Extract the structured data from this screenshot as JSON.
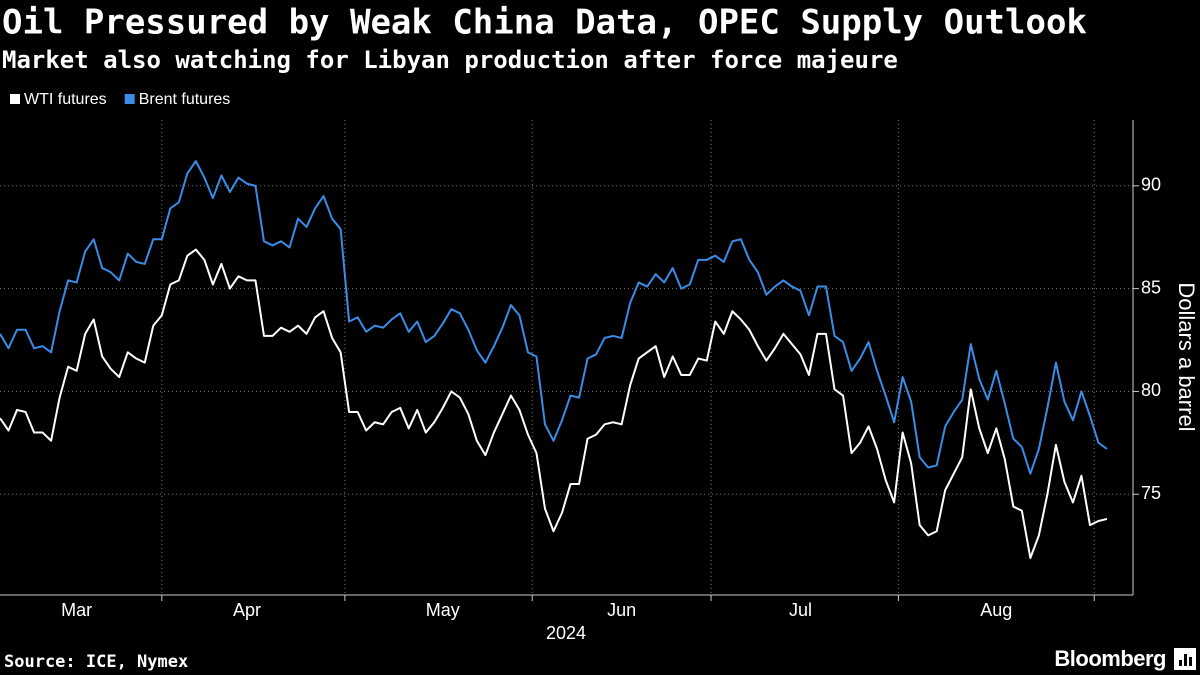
{
  "chart_data": {
    "type": "line",
    "title": "Oil Pressured by Weak China Data, OPEC Supply Outlook",
    "subtitle": "Market also watching for Libyan production after force majeure",
    "xlabel": "2024",
    "ylabel": "Dollars a barrel",
    "source": "Source: ICE, Nymex",
    "brand": "Bloomberg",
    "categories": [
      null,
      null,
      null,
      null,
      null,
      null,
      null,
      null,
      null,
      "Mar",
      null,
      null,
      null,
      null,
      null,
      null,
      null,
      null,
      null,
      null,
      null,
      null,
      null,
      null,
      null,
      null,
      null,
      null,
      null,
      "Apr",
      null,
      null,
      null,
      null,
      null,
      null,
      null,
      null,
      null,
      null,
      null,
      null,
      null,
      null,
      null,
      null,
      null,
      null,
      null,
      null,
      null,
      null,
      "May",
      null,
      null,
      null,
      null,
      null,
      null,
      null,
      null,
      null,
      null,
      null,
      null,
      null,
      null,
      null,
      null,
      null,
      null,
      null,
      null,
      "Jun",
      null,
      null,
      null,
      null,
      null,
      null,
      null,
      null,
      null,
      null,
      null,
      null,
      null,
      null,
      null,
      null,
      null,
      null,
      null,
      null,
      "Jul",
      null,
      null,
      null,
      null,
      null,
      null,
      null,
      null,
      null,
      null,
      null,
      null,
      null,
      null,
      null,
      null,
      null,
      null,
      null,
      null,
      null,
      null,
      "Aug",
      null,
      null,
      null,
      null,
      null,
      null,
      null,
      null,
      null,
      null,
      null,
      null,
      null
    ],
    "series": [
      {
        "name": "WTI futures",
        "color": "#ffffff",
        "values": [
          78.7,
          78.1,
          79.1,
          79.0,
          78.0,
          78.0,
          77.6,
          79.7,
          81.2,
          81.0,
          82.8,
          83.5,
          81.7,
          81.1,
          80.7,
          81.9,
          81.6,
          81.4,
          83.2,
          83.7,
          85.2,
          85.4,
          86.6,
          86.9,
          86.4,
          85.2,
          86.2,
          85.0,
          85.6,
          85.4,
          85.4,
          82.7,
          82.7,
          83.1,
          82.9,
          83.2,
          82.8,
          83.6,
          83.9,
          82.6,
          81.9,
          79.0,
          79.0,
          78.1,
          78.5,
          78.4,
          79.0,
          79.2,
          78.2,
          79.1,
          78.0,
          78.5,
          79.2,
          80.0,
          79.7,
          78.9,
          77.6,
          76.9,
          78.0,
          78.9,
          79.8,
          79.1,
          77.9,
          77.0,
          74.3,
          73.2,
          74.1,
          75.5,
          75.5,
          77.7,
          77.9,
          78.4,
          78.5,
          78.4,
          80.3,
          81.6,
          81.9,
          82.2,
          80.7,
          81.7,
          80.8,
          80.8,
          81.6,
          81.5,
          83.4,
          82.8,
          83.9,
          83.5,
          83.0,
          82.2,
          81.5,
          82.1,
          82.8,
          82.3,
          81.8,
          80.8,
          82.8,
          82.8,
          80.1,
          79.8,
          77.0,
          77.5,
          78.3,
          77.2,
          75.7,
          74.6,
          78.0,
          76.5,
          73.5,
          73.0,
          73.2,
          75.2,
          76.0,
          76.8,
          80.1,
          78.2,
          77.0,
          78.2,
          76.7,
          74.4,
          74.2,
          71.9,
          73.0,
          75.0,
          77.4,
          75.6,
          74.6,
          75.9,
          73.5,
          73.7,
          73.8
        ]
      },
      {
        "name": "Brent futures",
        "color": "#3a8ce6",
        "values": [
          82.8,
          82.1,
          83.0,
          83.0,
          82.1,
          82.2,
          81.9,
          83.9,
          85.4,
          85.3,
          86.8,
          87.4,
          86.0,
          85.8,
          85.4,
          86.7,
          86.3,
          86.2,
          87.4,
          87.4,
          88.9,
          89.2,
          90.6,
          91.2,
          90.4,
          89.4,
          90.5,
          89.7,
          90.4,
          90.1,
          90.0,
          87.3,
          87.1,
          87.3,
          87.0,
          88.4,
          88.0,
          88.9,
          89.5,
          88.4,
          87.9,
          83.4,
          83.6,
          82.9,
          83.2,
          83.1,
          83.5,
          83.8,
          82.9,
          83.4,
          82.4,
          82.7,
          83.3,
          84.0,
          83.8,
          83.0,
          82.0,
          81.4,
          82.2,
          83.1,
          84.2,
          83.7,
          81.9,
          81.7,
          78.4,
          77.6,
          78.6,
          79.8,
          79.7,
          81.6,
          81.8,
          82.6,
          82.7,
          82.6,
          84.3,
          85.3,
          85.1,
          85.7,
          85.3,
          86.0,
          85.0,
          85.2,
          86.4,
          86.4,
          86.6,
          86.3,
          87.3,
          87.4,
          86.4,
          85.8,
          84.7,
          85.1,
          85.4,
          85.1,
          84.9,
          83.7,
          85.1,
          85.1,
          82.7,
          82.4,
          81.0,
          81.6,
          82.4,
          81.0,
          79.8,
          78.5,
          80.7,
          79.5,
          76.8,
          76.3,
          76.4,
          78.3,
          79.0,
          79.6,
          82.3,
          80.6,
          79.6,
          81.0,
          79.4,
          77.7,
          77.3,
          76.0,
          77.2,
          79.2,
          81.4,
          79.5,
          78.6,
          80.0,
          78.8,
          77.5,
          77.2
        ]
      }
    ],
    "ylim": [
      70.1,
      93.2
    ],
    "yticks": [
      75,
      80,
      85,
      90
    ],
    "grid": true,
    "legend": "top-left"
  }
}
